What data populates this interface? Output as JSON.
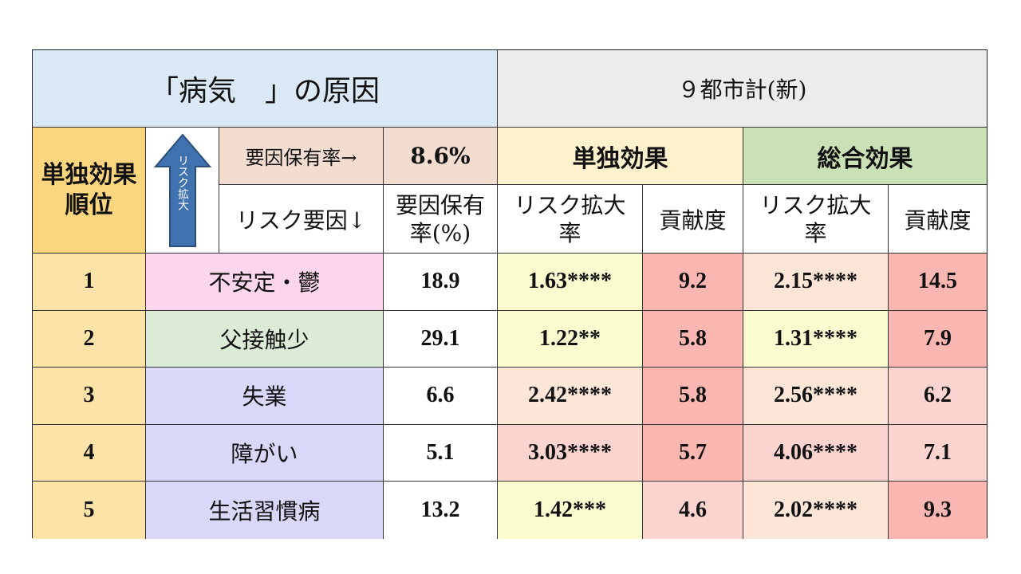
{
  "header": {
    "title": "「病気　」の原因",
    "region": "９都市計(新)"
  },
  "columns": {
    "rank_label": "単独効果\n順位",
    "arrow_text": "リスク拡大",
    "factor_rate_label": "要因保有率→",
    "factor_rate_value": "8.6%",
    "risk_factor_label": "リスク要因↓",
    "holding_rate_label": "要因保有\n率(%)",
    "single_effect": "単独効果",
    "total_effect": "総合効果",
    "risk_expansion": "リスク拡大\n率",
    "contribution": "貢献度"
  },
  "rows": [
    {
      "rank": "1",
      "factor": "不安定・鬱",
      "rate": "18.9",
      "single_risk": "1.63****",
      "single_contrib": "9.2",
      "total_risk": "2.15****",
      "total_contrib": "14.5"
    },
    {
      "rank": "2",
      "factor": "父接触少",
      "rate": "29.1",
      "single_risk": "1.22**",
      "single_contrib": "5.8",
      "total_risk": "1.31****",
      "total_contrib": "7.9"
    },
    {
      "rank": "3",
      "factor": "失業",
      "rate": "6.6",
      "single_risk": "2.42****",
      "single_contrib": "5.8",
      "total_risk": "2.56****",
      "total_contrib": "6.2"
    },
    {
      "rank": "4",
      "factor": "障がい",
      "rate": "5.1",
      "single_risk": "3.03****",
      "single_contrib": "5.7",
      "total_risk": "4.06****",
      "total_contrib": "7.1"
    },
    {
      "rank": "5",
      "factor": "生活習慣病",
      "rate": "13.2",
      "single_risk": "1.42***",
      "single_contrib": "4.6",
      "total_risk": "2.02****",
      "total_contrib": "9.3"
    }
  ],
  "colors": {
    "title_bg": "#dbe9f6",
    "region_bg": "#ececec",
    "rank_bg": "#fde3a7",
    "rank_header_bg": "#fcd67f",
    "factor_rate_bg": "#f2ddd0",
    "single_bg": "#fdf2cc",
    "total_bg": "#c9e1b5",
    "factor_bg": [
      "#fbd6ec",
      "#dbebd6",
      "#d9d8f8",
      "#d9d8f8",
      "#d9d8f8"
    ],
    "single_risk_bg": [
      "#fbfbd0",
      "#fbfbd0",
      "#fde5d8",
      "#fcd4cf",
      "#fbfbd0"
    ],
    "single_contrib_bg": [
      "#fab6b0",
      "#fab6b0",
      "#fab6b0",
      "#fab6b0",
      "#fcd4cf"
    ],
    "total_risk_bg": [
      "#fde5d8",
      "#fbfbd0",
      "#fde5d8",
      "#fcd4cf",
      "#fde5d8"
    ],
    "total_contrib_bg": [
      "#fab6b0",
      "#fab6b0",
      "#fcd4cf",
      "#fcd4cf",
      "#fab6b0"
    ]
  }
}
